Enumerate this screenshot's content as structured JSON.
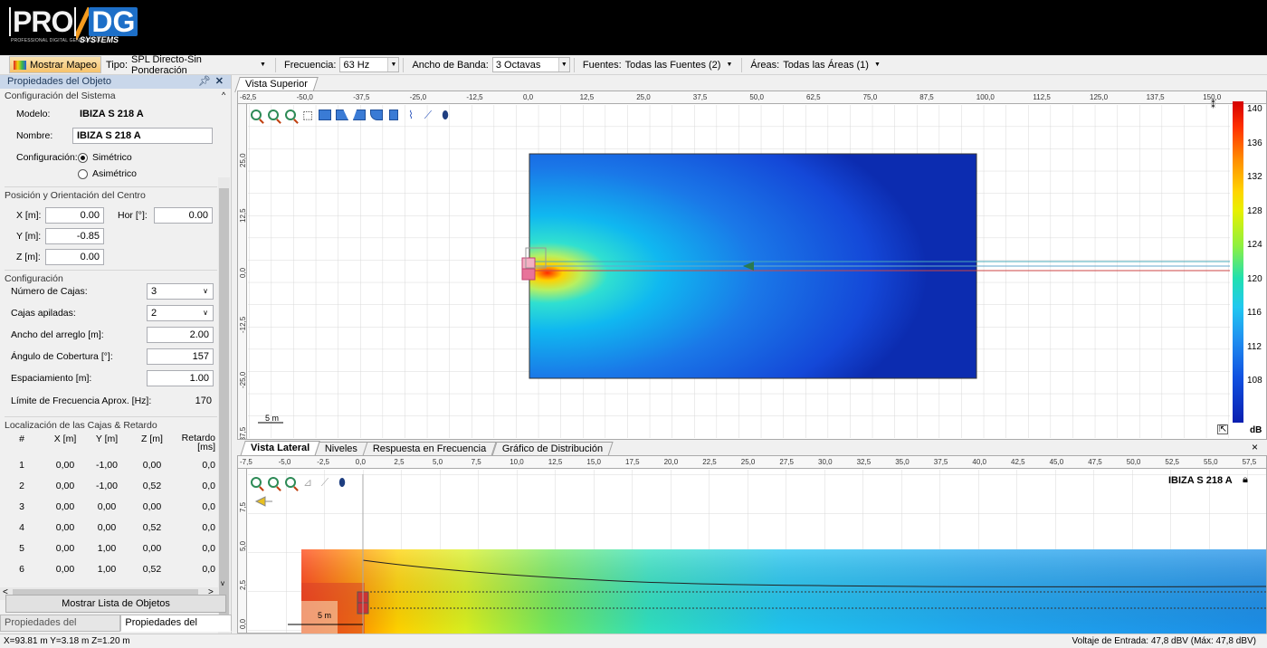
{
  "logo": {
    "brand_left": "PRO",
    "brand_right": "DG",
    "tagline": "PROFESSIONAL DIGITAL GENERATION",
    "sub": "SYSTEMS"
  },
  "toolbar": {
    "show_map_label": "Mostrar Mapeo",
    "type_label": "Tipo:",
    "type_value": "SPL Directo-Sin Ponderación",
    "freq_label": "Frecuencia:",
    "freq_value": "63 Hz",
    "band_label": "Ancho de Banda:",
    "band_value": "3 Octavas",
    "sources_label": "Fuentes:",
    "sources_value": "Todas las Fuentes (2)",
    "areas_label": "Áreas:",
    "areas_value": "Todas las Áreas (1)"
  },
  "panel": {
    "title": "Propiedades del Objeto",
    "sys_header": "Configuración del Sistema",
    "model_label": "Modelo:",
    "model_value": "IBIZA S 218 A",
    "name_label": "Nombre:",
    "name_value": "IBIZA S 218 A",
    "config_label": "Configuración:",
    "radio_sym": "Simétrico",
    "radio_asym": "Asimétrico",
    "pos_header": "Posición y Orientación del Centro",
    "x_label": "X [m]:",
    "x_value": "0.00",
    "hor_label": "Hor [°]:",
    "hor_value": "0.00",
    "y_label": "Y [m]:",
    "y_value": "-0.85",
    "z_label": "Z [m]:",
    "z_value": "0.00",
    "cfg_header": "Configuración",
    "boxes_label": "Número de Cajas:",
    "boxes_value": "3",
    "stacked_label": "Cajas apiladas:",
    "stacked_value": "2",
    "width_label": "Ancho del arreglo [m]:",
    "width_value": "2.00",
    "angle_label": "Ángulo de Cobertura [°]:",
    "angle_value": "157",
    "spacing_label": "Espaciamiento [m]:",
    "spacing_value": "1.00",
    "freq_limit_label": "Límite de Frecuencia Aprox. [Hz]:",
    "freq_limit_value": "170",
    "loc_header": "Localización de las Cajas & Retardo",
    "cols": [
      "#",
      "X [m]",
      "Y [m]",
      "Z [m]",
      "Retardo [ms]"
    ],
    "rows": [
      [
        "1",
        "0,00",
        "-1,00",
        "0,00",
        "0,0"
      ],
      [
        "2",
        "0,00",
        "-1,00",
        "0,52",
        "0,0"
      ],
      [
        "3",
        "0,00",
        "0,00",
        "0,00",
        "0,0"
      ],
      [
        "4",
        "0,00",
        "0,00",
        "0,52",
        "0,0"
      ],
      [
        "5",
        "0,00",
        "1,00",
        "0,00",
        "0,0"
      ],
      [
        "6",
        "0,00",
        "1,00",
        "0,52",
        "0,0"
      ]
    ],
    "show_list_label": "Mostrar Lista de Objetos",
    "tab_project": "Propiedades del Proyecto",
    "tab_object": "Propiedades del Objeto"
  },
  "top_view": {
    "tab": "Vista Superior",
    "ruler_h": [
      "-62,5",
      "-50,0",
      "-37,5",
      "-25,0",
      "-12,5",
      "0,0",
      "12,5",
      "25,0",
      "37,5",
      "50,0",
      "62,5",
      "75,0",
      "87,5",
      "100,0",
      "112,5",
      "125,0",
      "137,5",
      "150,0"
    ],
    "ruler_v": [
      "25,0",
      "12,5",
      "0,0",
      "-12,5",
      "-25,0",
      "-37,5"
    ],
    "scale_label": "5 m",
    "colorbar_labels": [
      "140",
      "136",
      "132",
      "128",
      "124",
      "120",
      "116",
      "112",
      "108"
    ],
    "colorbar_unit": "dB"
  },
  "bottom_view": {
    "tabs": [
      "Vista Lateral",
      "Niveles",
      "Respuesta en Frecuencia",
      "Gráfico de Distribución"
    ],
    "ruler_h": [
      "-7,5",
      "-5,0",
      "-2,5",
      "0,0",
      "2,5",
      "5,0",
      "7,5",
      "10,0",
      "12,5",
      "15,0",
      "17,5",
      "20,0",
      "22,5",
      "25,0",
      "27,5",
      "30,0",
      "32,5",
      "35,0",
      "37,5",
      "40,0",
      "42,5",
      "45,0",
      "47,5",
      "50,0",
      "52,5",
      "55,0",
      "57,5"
    ],
    "ruler_v": [
      "7,5",
      "5,0",
      "2,5",
      "0,0"
    ],
    "object_label": "IBIZA S 218 A",
    "scale_label": "5 m",
    "close": "×"
  },
  "status": {
    "coords": "X=93.81 m Y=3.18 m Z=1.20 m",
    "voltage": "Voltaje de Entrada: 47,8 dBV (Máx: 47,8 dBV)"
  }
}
